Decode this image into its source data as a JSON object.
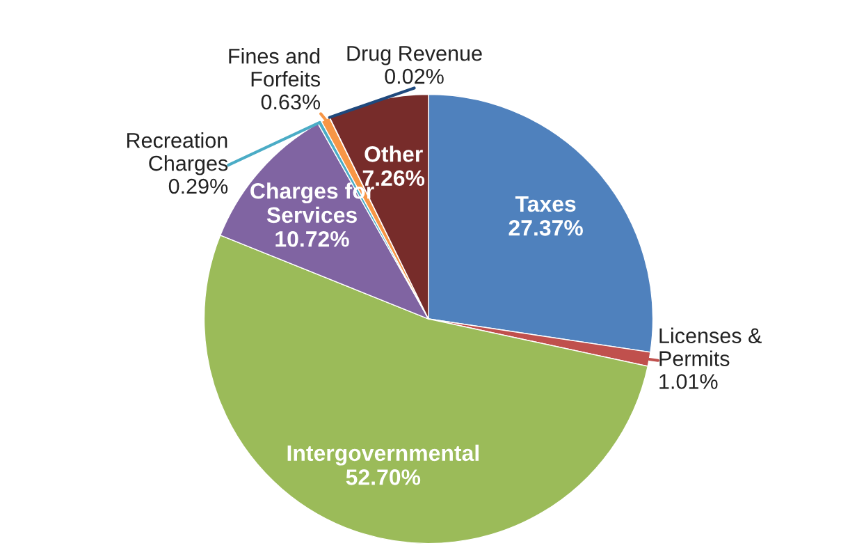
{
  "chart_data": {
    "type": "pie",
    "categories": [
      "Taxes",
      "Licenses &\nPermits",
      "Intergovernmental",
      "Charges for\nServices",
      "Recreation\nCharges",
      "Fines and\nForfeits",
      "Drug Revenue",
      "Other"
    ],
    "values": [
      27.37,
      1.01,
      52.7,
      10.72,
      0.29,
      0.63,
      0.02,
      7.26
    ],
    "value_labels": [
      "27.37%",
      "1.01%",
      "52.70%",
      "10.72%",
      "0.29%",
      "0.63%",
      "0.02%",
      "7.26%"
    ],
    "colors": [
      "#4f81bd",
      "#c0504d",
      "#9bbb59",
      "#8064a2",
      "#4bacc6",
      "#f79646",
      "#1f497d",
      "#772c2a"
    ]
  }
}
